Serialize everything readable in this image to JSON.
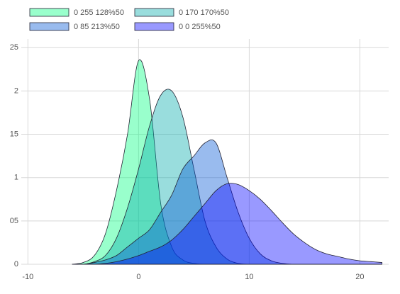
{
  "chart_data": {
    "type": "area",
    "x": [
      -6,
      -5,
      -4,
      -3,
      -2,
      -1,
      0,
      1,
      2,
      3,
      4,
      5,
      6,
      7,
      8,
      9,
      10,
      11,
      12,
      13,
      14,
      15,
      16,
      17,
      18,
      19,
      20,
      21,
      22
    ],
    "series": [
      {
        "name": "0 255 128%50",
        "color": "rgba(0,255,128,0.4)",
        "values": [
          0,
          0.002,
          0.01,
          0.035,
          0.085,
          0.15,
          0.235,
          0.19,
          0.07,
          0.02,
          0.005,
          0.001,
          0,
          0,
          0,
          0,
          0,
          0,
          0,
          0,
          0,
          0,
          0,
          0,
          0,
          0,
          0,
          0,
          0
        ]
      },
      {
        "name": "0 170 170%50",
        "color": "rgba(0,170,170,0.4)",
        "values": [
          0,
          0,
          0.003,
          0.01,
          0.03,
          0.065,
          0.11,
          0.16,
          0.195,
          0.2,
          0.17,
          0.11,
          0.05,
          0.02,
          0.006,
          0.001,
          0,
          0,
          0,
          0,
          0,
          0,
          0,
          0,
          0,
          0,
          0,
          0,
          0
        ]
      },
      {
        "name": "0 85 213%50",
        "color": "rgba(0,85,213,0.4)",
        "values": [
          0,
          0,
          0.002,
          0.005,
          0.01,
          0.02,
          0.03,
          0.04,
          0.06,
          0.08,
          0.11,
          0.125,
          0.14,
          0.14,
          0.1,
          0.06,
          0.03,
          0.012,
          0.004,
          0.001,
          0,
          0,
          0,
          0,
          0,
          0,
          0,
          0,
          0
        ]
      },
      {
        "name": "0 0 255%50",
        "color": "rgba(0,0,255,0.4)",
        "values": [
          0,
          0,
          0,
          0.001,
          0.003,
          0.006,
          0.01,
          0.015,
          0.02,
          0.028,
          0.04,
          0.055,
          0.07,
          0.085,
          0.093,
          0.092,
          0.085,
          0.075,
          0.062,
          0.048,
          0.035,
          0.025,
          0.017,
          0.012,
          0.009,
          0.006,
          0.004,
          0.003,
          0.002
        ]
      }
    ],
    "xlim": [
      -10.6,
      22.6
    ],
    "xticks": [
      -10,
      0,
      10,
      20
    ],
    "ylim": [
      0,
      0.26
    ],
    "yticks": [
      0,
      {
        "value": 0.05,
        "label": "05"
      },
      {
        "value": 0.1,
        "label": "1"
      },
      {
        "value": 0.15,
        "label": "15"
      },
      {
        "value": 0.2,
        "label": "2"
      },
      {
        "value": 0.25,
        "label": "25"
      }
    ],
    "grid": true,
    "legend": "top-left"
  }
}
